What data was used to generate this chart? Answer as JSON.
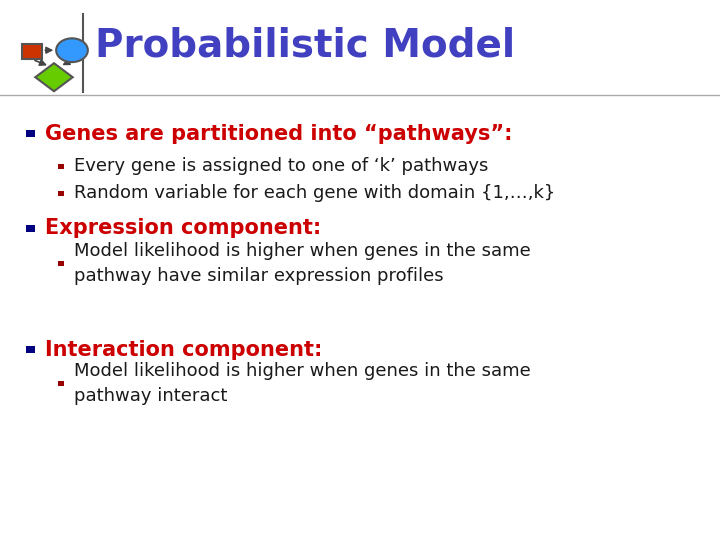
{
  "title": "Probabilistic Model",
  "title_color": "#4040C0",
  "title_fontsize": 28,
  "bg_color": "#FFFFFF",
  "bullet_color": "#000080",
  "red_color": "#CC0000",
  "black_color": "#1a1a1a",
  "bullet1_text": "Genes are partitioned into “pathways”:",
  "bullet1_sub": [
    "Every gene is assigned to one of ‘k’ pathways",
    "Random variable for each gene with domain {1,…,k}"
  ],
  "bullet2_text": "Expression component:",
  "bullet2_sub": [
    "Model likelihood is higher when genes in the same\npathway have similar expression profiles"
  ],
  "bullet3_text": "Interaction component:",
  "bullet3_sub": [
    "Model likelihood is higher when genes in the same\npathway interact"
  ],
  "main_font_size": 15,
  "sub_font_size": 13
}
